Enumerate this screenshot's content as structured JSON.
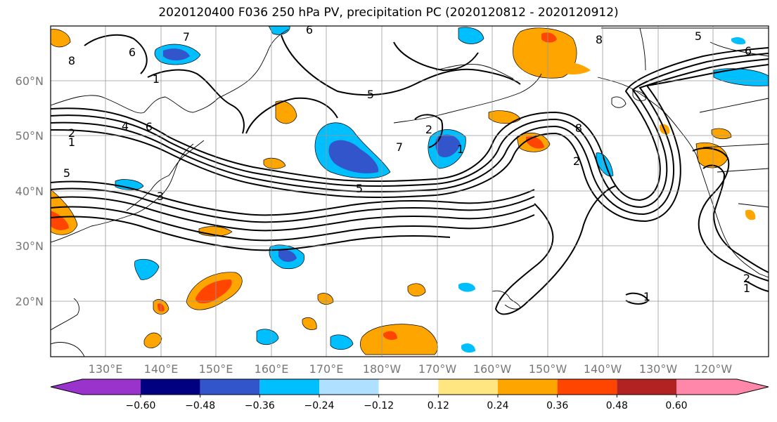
{
  "title": "2020120400 F036 250 hPa PV, precipitation PC (2020120812 - 2020120912)",
  "lat_ticks": [
    "60°N",
    "50°N",
    "40°N",
    "30°N",
    "20°N"
  ],
  "lon_ticks": [
    "130°E",
    "140°E",
    "150°E",
    "160°E",
    "170°E",
    "180°W",
    "170°W",
    "160°W",
    "150°W",
    "140°W",
    "130°W",
    "120°W"
  ],
  "colorbar": {
    "ticks": [
      "−0.60",
      "−0.48",
      "−0.36",
      "−0.24",
      "−0.12",
      "0.12",
      "0.24",
      "0.36",
      "0.48",
      "0.60"
    ],
    "colors": [
      "#9933cc",
      "#000080",
      "#3355cc",
      "#00bfff",
      "#b0e0ff",
      "#ffffff",
      "#ffe680",
      "#ffa500",
      "#ff4500",
      "#b22222",
      "#ff88aa"
    ]
  },
  "contour_labels": [
    "8",
    "6",
    "7",
    "1",
    "5",
    "4",
    "6",
    "2",
    "1",
    "5",
    "3",
    "5",
    "7",
    "8",
    "2",
    "8",
    "5",
    "6",
    "2",
    "1",
    "1",
    "2",
    "1",
    "6"
  ],
  "map_extent": {
    "lon_min": 120,
    "lon_max": 250,
    "lat_min": 10,
    "lat_max": 70
  },
  "legend_colors": {
    "land_line": "#000000",
    "grid": "#999999"
  }
}
